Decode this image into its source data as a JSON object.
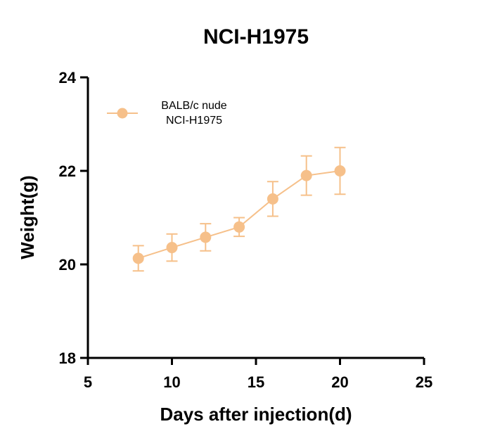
{
  "chart_data": {
    "type": "line",
    "title": "NCI-H1975",
    "xlabel": "Days after injection(d)",
    "ylabel": "Weight(g)",
    "xlim": [
      5,
      25
    ],
    "ylim": [
      18,
      24
    ],
    "x_ticks": [
      "5",
      "10",
      "15",
      "20",
      "25"
    ],
    "y_ticks": [
      "18",
      "20",
      "22",
      "24"
    ],
    "grid": false,
    "legend_position": "top-left",
    "series": [
      {
        "name": "BALB/c nude NCI-H1975",
        "legend_lines": [
          "BALB/c nude",
          "NCI-H1975"
        ],
        "color": "#F6C08A",
        "x": [
          8,
          10,
          12,
          14,
          16,
          18,
          20
        ],
        "y": [
          20.13,
          20.36,
          20.58,
          20.8,
          21.4,
          21.9,
          22.0
        ],
        "error": [
          0.27,
          0.29,
          0.29,
          0.2,
          0.37,
          0.42,
          0.5
        ]
      }
    ]
  }
}
